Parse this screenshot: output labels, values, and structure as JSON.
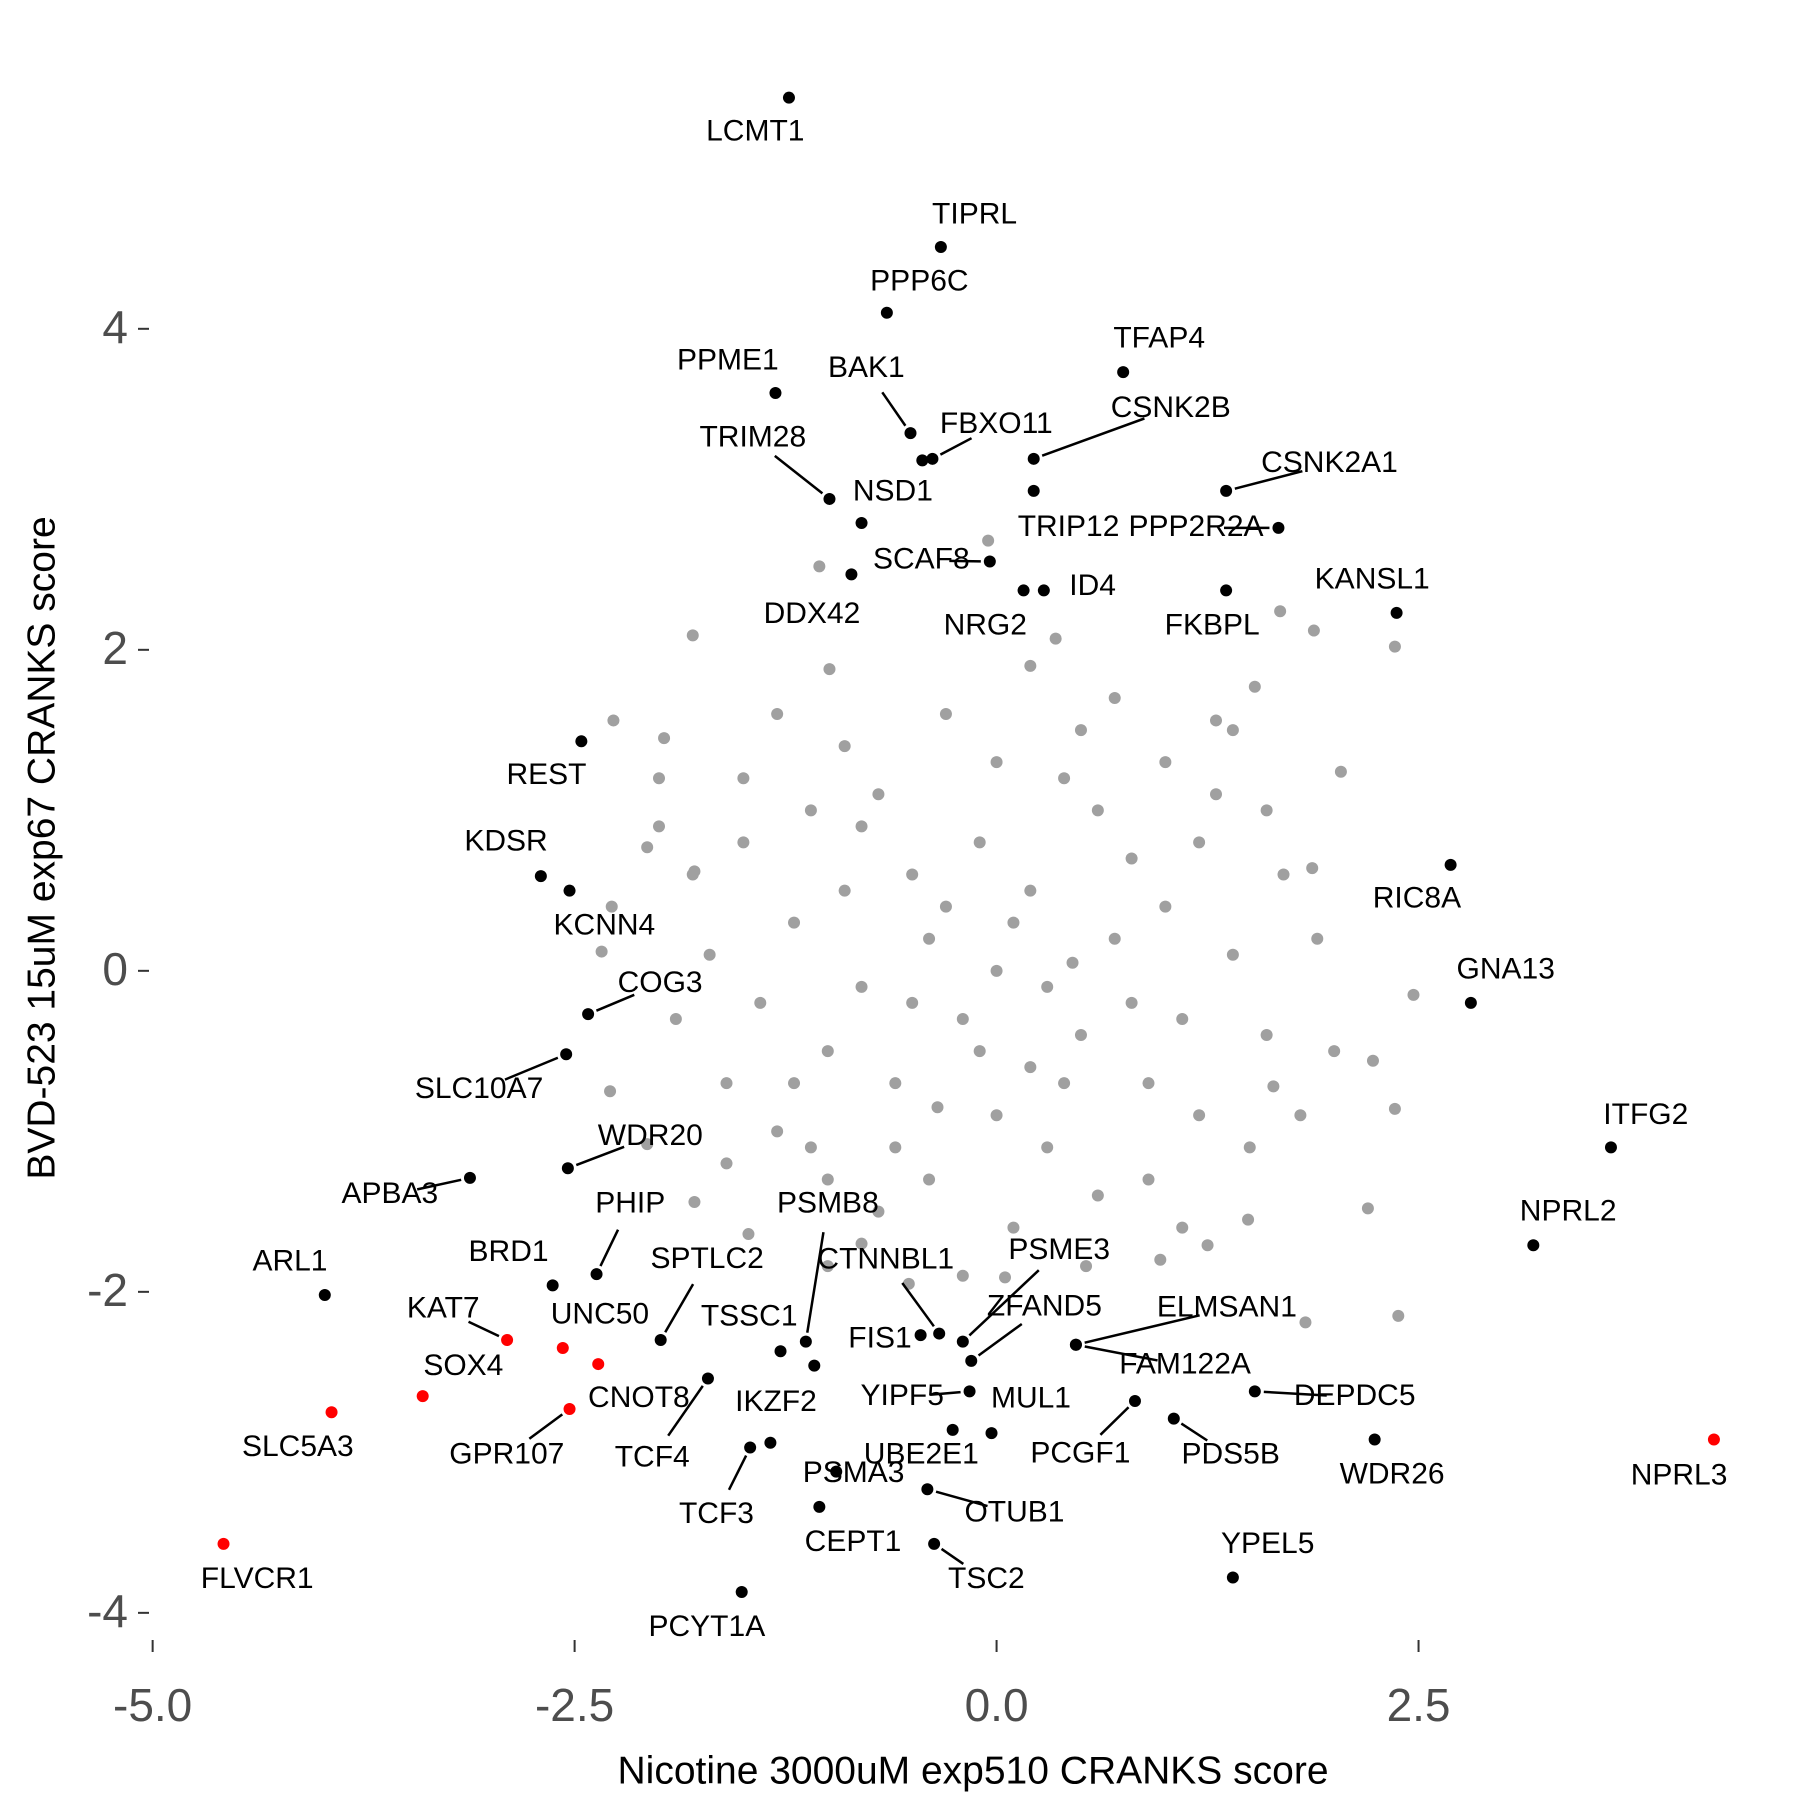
{
  "chart_data": {
    "type": "scatter",
    "xlabel": "Nicotine 3000uM exp510 CRANKS score",
    "ylabel": "BVD-523 15uM exp67 CRANKS score",
    "xlim": [
      -5.3,
      4.6
    ],
    "ylim": [
      -4.3,
      5.6
    ],
    "xticks": [
      {
        "value": -5,
        "label": "-5.0"
      },
      -2.5,
      {
        "value": 0,
        "label": "0.0"
      },
      2.5
    ],
    "yticks": [
      -4,
      -2,
      0,
      2,
      4
    ],
    "grid": false,
    "series": [
      {
        "color": "#a0a0a0",
        "x": [
          -1.8,
          -2.27,
          2.36,
          1.88,
          1.68,
          2.36,
          2.38,
          1.83,
          2.47,
          2.23,
          2.04,
          1.87,
          1.64,
          -2.29,
          -2.28,
          -1.97,
          -2.0,
          -2.34,
          -0.99,
          -1.05,
          -0.05,
          0.35,
          1.53,
          1.3,
          2.2,
          1.49,
          -1.79,
          -1.47,
          -1.0,
          -0.52,
          0.05,
          0.53,
          0.97,
          1.25,
          -2.07,
          -2.07,
          -1.79,
          -1.2,
          -1.0,
          -0.8,
          -0.6,
          -0.4,
          -0.2,
          0,
          0.2,
          0.4,
          0.6,
          0.8,
          1.0,
          1.2,
          1.4,
          -1.4,
          -1.5,
          -1.3,
          -0.9,
          -0.7,
          -0.3,
          0.1,
          0.5,
          0.9,
          1.3,
          1.6,
          1.7,
          -1.7,
          -1.6,
          -0.5,
          0.3,
          -0.1,
          0.7,
          -0.8,
          0.0,
          1.1,
          -1.1,
          0.4,
          -0.4,
          1.0,
          -1.0,
          1.5,
          -1.5,
          0.2,
          -0.2,
          1.9,
          -1.9,
          0.8,
          -0.6,
          0.6,
          -0.3,
          0.1,
          -0.9,
          0.9,
          1.2,
          -1.2,
          0.5,
          -0.5,
          0.0,
          0.3,
          -0.7,
          1.8,
          -1.8,
          1.4,
          -1.3,
          0.7,
          -0.8,
          1.1,
          -1.1,
          2.0,
          -2.0,
          1.6,
          -1.6,
          0.2,
          -0.1,
          0.45,
          -0.35
        ],
        "y": [
          2.09,
          1.56,
          2.02,
          2.12,
          2.24,
          -0.86,
          -2.15,
          -2.19,
          -0.15,
          -0.56,
          1.24,
          0.64,
          -0.72,
          -0.75,
          0.4,
          1.45,
          1.2,
          0.12,
          1.88,
          2.52,
          2.68,
          2.07,
          1.77,
          1.56,
          -1.48,
          -1.55,
          -1.44,
          -1.64,
          -1.84,
          -1.95,
          -1.91,
          -1.84,
          -1.8,
          -1.71,
          -1.08,
          0.77,
          0.62,
          0.3,
          -0.5,
          0.9,
          -1.1,
          0.2,
          -0.3,
          0,
          0.5,
          -0.7,
          1.0,
          -0.2,
          0.4,
          -0.9,
          0.1,
          -0.2,
          0.8,
          -1.0,
          1.4,
          -1.5,
          1.6,
          -1.6,
          1.5,
          -1.3,
          1.1,
          -0.4,
          0.6,
          0.1,
          -0.7,
          0.6,
          -0.1,
          0.8,
          0.2,
          -0.1,
          -0.9,
          -0.3,
          1.0,
          1.2,
          -1.3,
          1.3,
          -1.3,
          -1.1,
          1.2,
          1.9,
          -1.9,
          0.2,
          -0.3,
          0.7,
          -0.7,
          -1.4,
          0.4,
          0.3,
          0.5,
          -0.7,
          0.8,
          -0.7,
          -0.4,
          -0.2,
          1.3,
          -1.1,
          1.1,
          -0.9,
          0.6,
          1.5,
          1.6,
          1.7,
          -1.7,
          -1.6,
          -1.1,
          -0.5,
          0.9,
          1.0,
          -1.2,
          -0.6,
          -0.5,
          0.05,
          -0.85
        ]
      },
      {
        "color": "#000000",
        "x": [
          -1.23,
          -0.33,
          -0.65,
          0.75,
          -1.31,
          -0.51,
          -0.38,
          0.22,
          -0.99,
          -0.8,
          1.36,
          0.22,
          1.67,
          -0.04,
          -0.86,
          0.28,
          0.16,
          1.36,
          2.37,
          -2.46,
          -2.7,
          -2.53,
          2.69,
          2.81,
          -2.42,
          -2.55,
          3.64,
          -2.54,
          -3.12,
          3.18,
          -2.37,
          -3.98,
          -2.63,
          -1.99,
          -1.28,
          -1.13,
          -1.08,
          -0.34,
          -0.45,
          -0.2,
          -0.15,
          -0.26,
          -0.16,
          -0.03,
          -0.41,
          -0.37,
          0.82,
          0.47,
          0.47,
          1.05,
          1.53,
          2.24,
          -1.71,
          -1.46,
          -0.95,
          -1.05,
          1.4,
          -1.51,
          -1.34,
          -0.44
        ],
        "y": [
          5.44,
          4.51,
          4.1,
          3.73,
          3.6,
          3.35,
          3.19,
          3.19,
          2.94,
          2.79,
          2.99,
          2.99,
          2.76,
          2.55,
          2.47,
          2.37,
          2.37,
          2.37,
          2.23,
          1.43,
          0.59,
          0.5,
          0.66,
          -0.2,
          -0.27,
          -0.52,
          -1.1,
          -1.23,
          -1.29,
          -1.71,
          -1.89,
          -2.02,
          -1.96,
          -2.3,
          -2.37,
          -2.31,
          -2.46,
          -2.26,
          -2.27,
          -2.31,
          -2.43,
          -2.86,
          -2.62,
          -2.88,
          -3.23,
          -3.57,
          -2.68,
          -2.33,
          -2.33,
          -2.79,
          -2.62,
          -2.92,
          -2.54,
          -2.97,
          -3.12,
          -3.34,
          -3.78,
          -3.87,
          -2.94,
          3.18
        ],
        "labels": [
          "LCMT1",
          "TIPRL",
          "PPP6C",
          "TFAP4",
          "PPME1",
          "BAK1",
          "FBXO11",
          "CSNK2B",
          "TRIM28",
          "NSD1",
          "CSNK2A1",
          "TRIP12",
          "PPP2R2A",
          "SCAF8",
          "DDX42",
          "ID4",
          "NRG2",
          "FKBPL",
          "KANSL1",
          "REST",
          "KDSR",
          "KCNN4",
          "RIC8A",
          "GNA13",
          "COG3",
          "SLC10A7",
          "ITFG2",
          "WDR20",
          "APBA3",
          "NPRL2",
          "PHIP",
          "ARL1",
          "BRD1",
          "SPTLC2",
          "TSSC1",
          "PSMB8",
          "IKZF2",
          "CTNNBL1",
          "FIS1",
          "PSME3",
          "ZFAND5",
          "UBE2E1",
          "YIPF5",
          "MUL1",
          "OTUB1",
          "TSC2",
          "PCGF1",
          "FAM122A",
          "ELMSAN1",
          "PDS5B",
          "DEPDC5",
          "WDR26",
          "TCF4",
          "TCF3",
          "PSMA3",
          "CEPT1",
          "YPEL5",
          "PCYT1A",
          null,
          null
        ]
      },
      {
        "color": "#ff0000",
        "x": [
          -2.9,
          -3.4,
          -2.57,
          -2.36,
          -2.53,
          -3.94,
          -4.58,
          4.25
        ],
        "y": [
          -2.3,
          -2.65,
          -2.35,
          -2.45,
          -2.73,
          -2.75,
          -3.57,
          -2.92
        ],
        "labels": [
          "KAT7",
          "SOX4",
          "UNC50",
          "CNOT8",
          "GPR107",
          "SLC5A3",
          "FLVCR1",
          "NPRL3"
        ]
      }
    ]
  }
}
